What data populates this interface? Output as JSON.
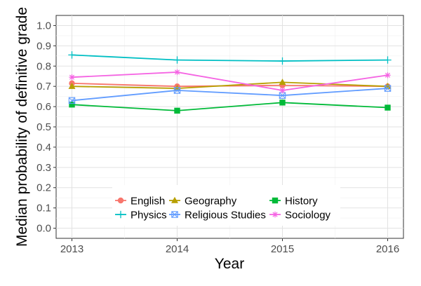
{
  "chart_data": {
    "type": "line",
    "title": "",
    "xlabel": "Year",
    "ylabel": "Median probability of definitive grade",
    "x": [
      2013,
      2014,
      2015,
      2016
    ],
    "xticks": [
      "2013",
      "2014",
      "2015",
      "2016"
    ],
    "ylim": [
      0.0,
      1.0
    ],
    "yticks": [
      "0.0",
      "0.1",
      "0.2",
      "0.3",
      "0.4",
      "0.5",
      "0.6",
      "0.7",
      "0.8",
      "0.9",
      "1.0"
    ],
    "grid": true,
    "legend_placement": "bottom-center (inside plot)",
    "series": [
      {
        "name": "English",
        "color": "#F8766D",
        "marker": "circle",
        "values": [
          0.715,
          0.7,
          0.705,
          0.7
        ]
      },
      {
        "name": "Geography",
        "color": "#B79F00",
        "marker": "triangle",
        "values": [
          0.7,
          0.69,
          0.72,
          0.7
        ]
      },
      {
        "name": "History",
        "color": "#00BA38",
        "marker": "square",
        "values": [
          0.61,
          0.58,
          0.62,
          0.595
        ]
      },
      {
        "name": "Physics",
        "color": "#00BFC4",
        "marker": "plus",
        "values": [
          0.855,
          0.83,
          0.825,
          0.83
        ]
      },
      {
        "name": "Religious Studies",
        "color": "#619CFF",
        "marker": "boxcross",
        "values": [
          0.63,
          0.68,
          0.655,
          0.69
        ]
      },
      {
        "name": "Sociology",
        "color": "#F564E3",
        "marker": "asterisk",
        "values": [
          0.745,
          0.77,
          0.68,
          0.755
        ]
      }
    ]
  }
}
